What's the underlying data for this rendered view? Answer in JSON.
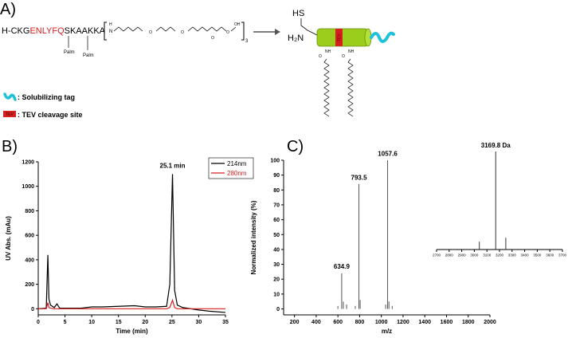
{
  "panel_a": {
    "label": "A)",
    "sequence_start": "H-CKG",
    "sequence_red": "ENLYFQ",
    "sequence_end": "SKAAKKA",
    "palm_1": "Palm",
    "palm_2": "Palm",
    "linker_h": "H",
    "linker_n": "N",
    "linker_oxygens": [
      "O",
      "O",
      "O"
    ],
    "linker_o": "O",
    "linker_oh": "OH",
    "repeat": "3",
    "thiol": "HS",
    "amine": "H₂N",
    "cylinder_tag": "TEV",
    "nh_1": "NH",
    "nh_2": "NH",
    "o_1": "O",
    "o_2": "O",
    "legend_tag": ": Solubilizing tag",
    "legend_tev_icon": "TEV",
    "legend_tev": ": TEV cleavage site"
  },
  "chart_data": [
    {
      "type": "line",
      "label": "B)",
      "x_label": "Time (min)",
      "y_label": "UV Abs. (mAu)",
      "x": [
        0,
        1.5,
        1.8,
        2.0,
        2.3,
        3,
        3.5,
        4,
        6,
        8,
        10,
        12,
        15,
        18,
        20,
        22,
        24,
        24.6,
        25.1,
        25.5,
        26,
        27,
        30,
        32,
        35
      ],
      "series": [
        {
          "name": "214nm",
          "color": "#000000",
          "values": [
            0,
            5,
            440,
            80,
            30,
            10,
            40,
            5,
            5,
            5,
            15,
            15,
            20,
            25,
            15,
            15,
            20,
            200,
            1100,
            150,
            30,
            10,
            -10,
            -20,
            -30
          ]
        },
        {
          "name": "280nm",
          "color": "#d62020",
          "values": [
            0,
            0,
            50,
            10,
            5,
            0,
            0,
            0,
            0,
            0,
            0,
            0,
            0,
            0,
            0,
            0,
            0,
            10,
            70,
            10,
            0,
            0,
            0,
            0,
            0
          ]
        }
      ],
      "xlim": [
        0,
        35
      ],
      "xticks": [
        0,
        5,
        10,
        15,
        20,
        25,
        30,
        35
      ],
      "ylim": [
        -50,
        1200
      ],
      "yticks": [
        0,
        200,
        400,
        600,
        800,
        1000,
        1200
      ],
      "legend": "upper right",
      "annotations": [
        {
          "text": "25.1 min",
          "x": 25.1,
          "y": 1150
        }
      ]
    },
    {
      "type": "stem",
      "label": "C)",
      "x_label": "m/z",
      "y_label": "Normalized intensity (%)",
      "color": "#555555",
      "x": [
        600,
        634.9,
        650,
        680,
        760,
        793.5,
        805,
        1040,
        1057.6,
        1070,
        1100
      ],
      "values": [
        2,
        24,
        5,
        3,
        2,
        84,
        6,
        3,
        100,
        5,
        2
      ],
      "xlim": [
        100,
        2000
      ],
      "xticks": [
        200,
        400,
        600,
        800,
        1000,
        1200,
        1400,
        1600,
        1800,
        2000
      ],
      "ylim": [
        -4,
        100
      ],
      "yticks": [
        0,
        10,
        20,
        30,
        40,
        50,
        60,
        70,
        80,
        90,
        100
      ],
      "annotations": [
        {
          "text": "634.9",
          "x": 634.9,
          "y": 27
        },
        {
          "text": "793.5",
          "x": 793.5,
          "y": 87
        },
        {
          "text": "1057.6",
          "x": 1057.6,
          "y": 103
        }
      ]
    },
    {
      "type": "stem",
      "color": "#333333",
      "x": [
        3040,
        3169.8,
        3250
      ],
      "values": [
        8,
        100,
        12
      ],
      "xlim": [
        2700,
        3700
      ],
      "xticks": [
        2700,
        2800,
        2900,
        3000,
        3100,
        3200,
        3300,
        3400,
        3500,
        3600,
        3700
      ],
      "ylim": [
        0,
        100
      ],
      "annotations": [
        {
          "text": "3169.8 Da",
          "x": 3169.8,
          "y": 104
        }
      ]
    }
  ]
}
